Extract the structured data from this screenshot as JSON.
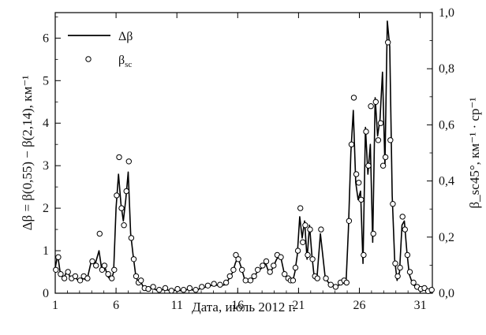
{
  "chart_data": {
    "type": "line",
    "xlabel": "Дата, июль 2012 г.",
    "ylabel": "Δβ = β(0,55) − β(2,14), км⁻¹",
    "y2label": "β_sc45°, км⁻¹ · ср⁻¹",
    "xlim": [
      1,
      32
    ],
    "ylim": [
      0,
      6.6
    ],
    "y2lim": [
      0,
      1.0
    ],
    "x_ticks": [
      1,
      6,
      11,
      16,
      21,
      26,
      31
    ],
    "y_ticks": [
      0,
      1,
      2,
      3,
      4,
      5,
      6
    ],
    "y2_ticks": [
      "0,0",
      "0,2",
      "0,4",
      "0,6",
      "0,8",
      "1,0"
    ],
    "y2_tick_values": [
      0,
      0.2,
      0.4,
      0.6,
      0.8,
      1.0
    ],
    "legend": {
      "position": "top-left",
      "items": [
        {
          "label": "Δβ",
          "kind": "line"
        },
        {
          "label": "β",
          "sub": "sc",
          "kind": "marker"
        }
      ]
    },
    "series": [
      {
        "name": "Δβ",
        "axis": "left",
        "style": "line",
        "color": "#000000",
        "x": [
          1.0,
          1.2,
          1.4,
          1.7,
          2.0,
          2.3,
          2.6,
          3.0,
          3.3,
          3.6,
          4.0,
          4.3,
          4.6,
          4.8,
          5.0,
          5.3,
          5.6,
          5.8,
          6.0,
          6.2,
          6.4,
          6.6,
          6.8,
          7.0,
          7.2,
          7.4,
          7.6,
          7.8,
          8.0,
          8.3,
          8.6,
          9.0,
          9.5,
          10.0,
          10.5,
          11.0,
          11.5,
          12.0,
          12.5,
          13.0,
          13.5,
          14.0,
          14.5,
          15.0,
          15.3,
          15.6,
          15.8,
          16.0,
          16.3,
          16.6,
          17.0,
          17.3,
          17.6,
          18.0,
          18.3,
          18.6,
          18.9,
          19.2,
          19.5,
          19.8,
          20.1,
          20.3,
          20.5,
          20.7,
          20.9,
          21.1,
          21.3,
          21.5,
          21.7,
          21.9,
          22.1,
          22.3,
          22.5,
          22.8,
          23.2,
          23.6,
          24.0,
          24.4,
          24.7,
          24.9,
          25.1,
          25.3,
          25.5,
          25.7,
          25.9,
          26.1,
          26.3,
          26.5,
          26.7,
          26.9,
          27.1,
          27.3,
          27.5,
          27.7,
          27.9,
          28.1,
          28.3,
          28.5,
          28.7,
          28.9,
          29.1,
          29.3,
          29.5,
          29.7,
          29.9,
          30.1,
          30.4,
          30.7,
          31.0,
          31.3,
          31.6,
          31.9
        ],
        "y": [
          0.6,
          0.9,
          0.5,
          0.35,
          0.55,
          0.3,
          0.4,
          0.25,
          0.35,
          0.3,
          0.8,
          0.7,
          1.0,
          0.6,
          0.7,
          0.4,
          0.3,
          0.5,
          2.0,
          2.8,
          2.1,
          1.7,
          2.2,
          2.85,
          1.4,
          0.9,
          0.45,
          0.25,
          0.3,
          0.1,
          0.08,
          0.12,
          0.05,
          0.1,
          0.05,
          0.08,
          0.05,
          0.1,
          0.06,
          0.12,
          0.15,
          0.2,
          0.18,
          0.2,
          0.35,
          0.5,
          0.7,
          0.85,
          0.6,
          0.3,
          0.25,
          0.35,
          0.5,
          0.6,
          0.7,
          0.45,
          0.6,
          0.8,
          0.9,
          0.5,
          0.35,
          0.3,
          0.25,
          0.5,
          0.9,
          1.8,
          1.3,
          1.7,
          0.8,
          1.6,
          0.9,
          0.35,
          0.3,
          1.4,
          0.35,
          0.2,
          0.15,
          0.2,
          0.25,
          0.2,
          1.5,
          3.3,
          4.3,
          2.6,
          2.2,
          2.4,
          0.7,
          3.9,
          2.8,
          3.5,
          1.2,
          4.6,
          3.7,
          4.1,
          5.2,
          3.0,
          6.4,
          5.8,
          2.3,
          0.8,
          0.3,
          0.5,
          1.6,
          1.7,
          1.0,
          0.45,
          0.2,
          0.15,
          0.1,
          0.15,
          0.08,
          0.1
        ]
      },
      {
        "name": "β",
        "axis": "left",
        "style": "marker",
        "color": "#000000",
        "x": [
          1.05,
          1.25,
          1.45,
          1.75,
          2.05,
          2.35,
          2.65,
          3.05,
          3.35,
          3.65,
          4.05,
          4.35,
          4.65,
          4.85,
          5.05,
          5.35,
          5.65,
          5.85,
          6.05,
          6.25,
          6.45,
          6.65,
          6.85,
          7.05,
          7.25,
          7.45,
          7.65,
          7.85,
          8.05,
          8.35,
          8.65,
          9.05,
          9.55,
          10.05,
          10.55,
          11.05,
          11.55,
          12.05,
          12.55,
          13.05,
          13.55,
          14.05,
          14.55,
          15.05,
          15.35,
          15.65,
          15.85,
          16.05,
          16.35,
          16.65,
          17.05,
          17.35,
          17.65,
          18.05,
          18.35,
          18.65,
          18.95,
          19.25,
          19.55,
          19.85,
          20.15,
          20.35,
          20.55,
          20.75,
          20.95,
          21.15,
          21.35,
          21.55,
          21.75,
          21.95,
          22.15,
          22.35,
          22.55,
          22.85,
          23.25,
          23.65,
          24.05,
          24.45,
          24.75,
          24.95,
          25.15,
          25.35,
          25.55,
          25.75,
          25.95,
          26.15,
          26.35,
          26.55,
          26.75,
          26.95,
          27.15,
          27.35,
          27.55,
          27.75,
          27.95,
          28.15,
          28.35,
          28.55,
          28.75,
          28.95,
          29.15,
          29.35,
          29.55,
          29.75,
          29.95,
          30.15,
          30.45,
          30.75,
          31.05,
          31.35,
          31.65,
          31.95
        ],
        "y": [
          0.55,
          0.85,
          0.45,
          0.35,
          0.5,
          0.35,
          0.4,
          0.3,
          0.4,
          0.35,
          0.75,
          0.65,
          1.4,
          0.55,
          0.65,
          0.45,
          0.35,
          0.55,
          2.3,
          3.2,
          2.0,
          1.6,
          2.4,
          3.1,
          1.3,
          0.8,
          0.4,
          0.25,
          0.3,
          0.12,
          0.1,
          0.15,
          0.08,
          0.12,
          0.06,
          0.1,
          0.08,
          0.12,
          0.08,
          0.15,
          0.18,
          0.22,
          0.2,
          0.25,
          0.4,
          0.55,
          0.9,
          0.8,
          0.55,
          0.3,
          0.3,
          0.4,
          0.55,
          0.65,
          0.75,
          0.5,
          0.65,
          0.9,
          0.85,
          0.45,
          0.35,
          0.3,
          0.3,
          0.6,
          1.0,
          2.0,
          1.2,
          1.6,
          0.9,
          1.5,
          0.8,
          0.4,
          0.35,
          1.5,
          0.35,
          0.2,
          0.15,
          0.25,
          0.3,
          0.25,
          1.7,
          3.5,
          4.6,
          2.8,
          2.6,
          2.2,
          0.9,
          3.8,
          3.0,
          4.4,
          1.4,
          4.5,
          3.6,
          4.0,
          3.0,
          3.2,
          5.9,
          3.6,
          2.1,
          0.7,
          0.4,
          0.6,
          1.8,
          1.5,
          0.9,
          0.5,
          0.25,
          0.15,
          0.1,
          0.12,
          0.05,
          0.08
        ]
      }
    ]
  }
}
